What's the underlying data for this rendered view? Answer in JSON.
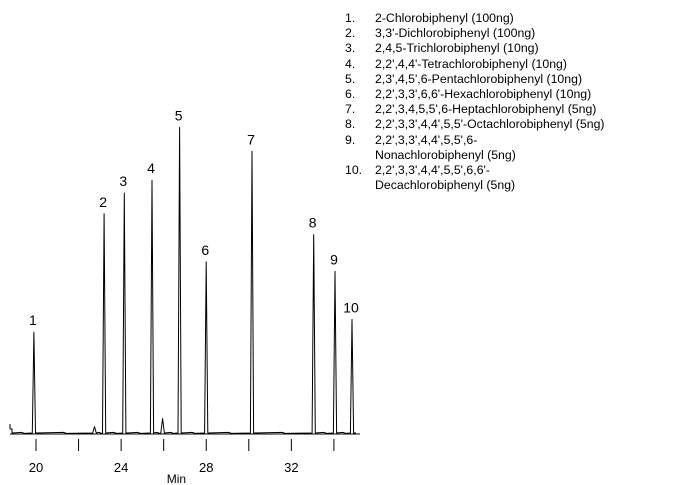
{
  "chart_data": {
    "type": "line",
    "xlabel": "Min",
    "ylabel": "",
    "title": "",
    "xlim": [
      19.1,
      34.8
    ],
    "ylim": [
      0,
      100
    ],
    "x_ticks": [
      20,
      24,
      28,
      32
    ],
    "peaks": [
      {
        "label": "1",
        "x": 19.9,
        "height": 31.5
      },
      {
        "label": "2",
        "x": 23.2,
        "height": 68.5
      },
      {
        "label": "3",
        "x": 24.15,
        "height": 75.0
      },
      {
        "label": "4",
        "x": 25.45,
        "height": 79.0
      },
      {
        "label": "5",
        "x": 26.75,
        "height": 95.5
      },
      {
        "label": "6",
        "x": 28.0,
        "height": 53.5
      },
      {
        "label": "7",
        "x": 30.15,
        "height": 88.0
      },
      {
        "label": "8",
        "x": 33.05,
        "height": 62.0
      },
      {
        "label": "9",
        "x": 34.05,
        "height": 50.5
      },
      {
        "label": "10",
        "x": 34.85,
        "height": 35.5
      }
    ],
    "minor_peaks": [
      {
        "x": 22.75,
        "height": 2.0
      },
      {
        "x": 25.95,
        "height": 4.5
      }
    ],
    "legend": [
      {
        "num": "1.",
        "text": "2-Chlorobiphenyl (100ng)"
      },
      {
        "num": "2.",
        "text": "3,3'-Dichlorobiphenyl (100ng)"
      },
      {
        "num": "3.",
        "text": "2,4,5-Trichlorobiphenyl (10ng)"
      },
      {
        "num": "4.",
        "text": "2,2',4,4'-Tetrachlorobiphenyl (10ng)"
      },
      {
        "num": "5.",
        "text": "2,3',4,5',6-Pentachlorobiphenyl (10ng)"
      },
      {
        "num": "6.",
        "text": "2,2',3,3',6,6'-Hexachlorobiphenyl (10ng)"
      },
      {
        "num": "7.",
        "text": "2,2',3,4,5,5',6-Heptachlorobiphenyl (5ng)"
      },
      {
        "num": "8.",
        "text": "2,2',3,3',4,4',5,5'-Octachlorobiphenyl (5ng)"
      },
      {
        "num": "9.",
        "text": "2,2',3,3',4,4',5,5',6-\nNonachlorobiphenyl (5ng)"
      },
      {
        "num": "10.",
        "text": "2,2',3,3',4,4',5,5',6,6'-\nDecachlorobiphenyl (5ng)"
      }
    ]
  }
}
